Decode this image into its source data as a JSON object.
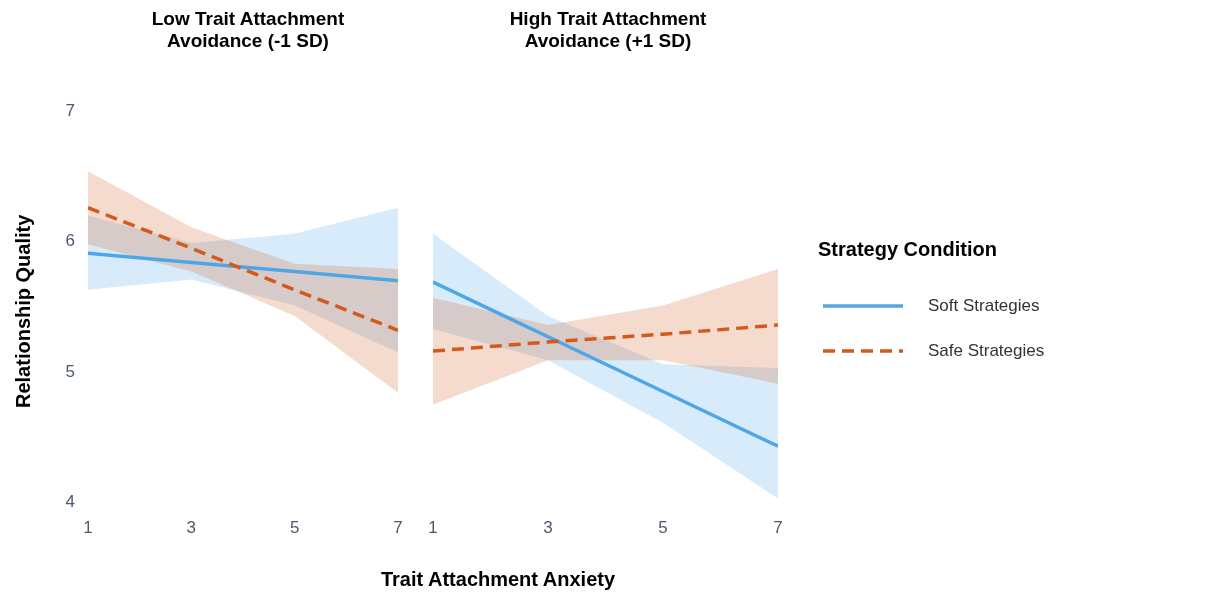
{
  "chart_data": [
    {
      "type": "line",
      "title": "Low Trait Attachment\nAvoidance (-1 SD)",
      "xlabel": "Trait Attachment Anxiety",
      "ylabel": "Relationship Quality",
      "legend_title": "Strategy Condition",
      "x": [
        1,
        3,
        5,
        7
      ],
      "xlim": [
        1,
        7
      ],
      "xticks": [
        1,
        3,
        5,
        7
      ],
      "ylim": [
        4,
        7
      ],
      "yticks": [
        4,
        5,
        6,
        7
      ],
      "grid": false,
      "legend": "right",
      "series": [
        {
          "name": "Soft Strategies",
          "color": "#4ea6e6",
          "line_style": "solid",
          "values": [
            5.9,
            5.83,
            5.76,
            5.69
          ],
          "lower": [
            5.62,
            5.7,
            5.5,
            5.14
          ],
          "upper": [
            6.19,
            5.98,
            6.05,
            6.25
          ]
        },
        {
          "name": "Safe Strategies",
          "color": "#d35a1c",
          "line_style": "dashed",
          "values": [
            6.25,
            5.94,
            5.62,
            5.31
          ],
          "lower": [
            5.97,
            5.76,
            5.42,
            4.83
          ],
          "upper": [
            6.53,
            6.1,
            5.82,
            5.78
          ]
        }
      ]
    },
    {
      "type": "line",
      "title": "High Trait Attachment\nAvoidance (+1 SD)",
      "x": [
        1,
        3,
        5,
        7
      ],
      "xlim": [
        1,
        7
      ],
      "xticks": [
        1,
        3,
        5,
        7
      ],
      "ylim": [
        4,
        7
      ],
      "yticks": [
        4,
        5,
        6,
        7
      ],
      "tick_labels": "x",
      "grid": false,
      "series": [
        {
          "color": "#4ea6e6",
          "line_style": "solid",
          "values": [
            5.68,
            5.26,
            4.84,
            4.42
          ],
          "lower": [
            5.32,
            5.08,
            4.6,
            4.02
          ],
          "upper": [
            6.05,
            5.42,
            5.05,
            5.02
          ]
        },
        {
          "color": "#d35a1c",
          "line_style": "dashed",
          "values": [
            5.15,
            5.22,
            5.28,
            5.35
          ],
          "lower": [
            4.74,
            5.08,
            5.08,
            4.9
          ],
          "upper": [
            5.56,
            5.35,
            5.5,
            5.78
          ]
        }
      ]
    }
  ]
}
